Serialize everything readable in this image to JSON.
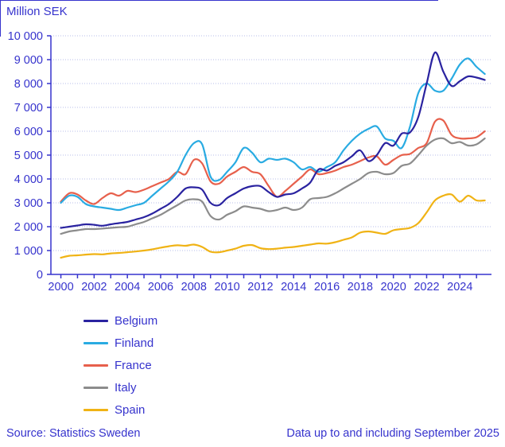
{
  "footer": {
    "source": "Source: Statistics Sweden",
    "note": "Data up to and including September 2025"
  },
  "colors": {
    "text": "#3633cd",
    "axis": "#3633cd",
    "grid": "#b7bce9",
    "border": "#3633cd"
  },
  "chart_data": {
    "type": "line",
    "title": "Million SEK",
    "ylabel": "Million SEK",
    "xlabel": "",
    "grid": "horizontal-dotted",
    "legend_position": "bottom-left",
    "xlim": [
      1999.4,
      2025.9
    ],
    "ylim": [
      0,
      10000
    ],
    "x_start": 2000.0,
    "x_step": 0.5,
    "x_tick_labels": [
      "2000",
      "2002",
      "2004",
      "2006",
      "2008",
      "2010",
      "2012",
      "2014",
      "2016",
      "2018",
      "2020",
      "2022",
      "2024"
    ],
    "x_tick_label_years": [
      2000,
      2002,
      2004,
      2006,
      2008,
      2010,
      2012,
      2014,
      2016,
      2018,
      2020,
      2022,
      2024
    ],
    "x_minor_tick_years": [
      2000,
      2001,
      2002,
      2003,
      2004,
      2005,
      2006,
      2007,
      2008,
      2009,
      2010,
      2011,
      2012,
      2013,
      2014,
      2015,
      2016,
      2017,
      2018,
      2019,
      2020,
      2021,
      2022,
      2023,
      2024,
      2025
    ],
    "y_ticks": [
      0,
      1000,
      2000,
      3000,
      4000,
      5000,
      6000,
      7000,
      8000,
      9000,
      10000
    ],
    "y_tick_labels": [
      "0",
      "1 000",
      "2 000",
      "3 000",
      "4 000",
      "5 000",
      "6 000",
      "7 000",
      "8 000",
      "9 000",
      "10 000"
    ],
    "series": [
      {
        "name": "Belgium",
        "color": "#2a23a0",
        "values": [
          1950,
          2000,
          2050,
          2100,
          2080,
          2040,
          2100,
          2150,
          2200,
          2300,
          2400,
          2550,
          2750,
          2950,
          3250,
          3600,
          3650,
          3550,
          3000,
          2900,
          3200,
          3400,
          3600,
          3700,
          3700,
          3450,
          3250,
          3350,
          3400,
          3600,
          3850,
          4400,
          4350,
          4550,
          4700,
          4950,
          5200,
          4750,
          5000,
          5500,
          5400,
          5900,
          5950,
          6600,
          8000,
          9300,
          8500,
          7900,
          8100,
          8300,
          8250,
          8150
        ]
      },
      {
        "name": "Finland",
        "color": "#29abe2",
        "values": [
          3000,
          3300,
          3250,
          2950,
          2850,
          2800,
          2750,
          2700,
          2800,
          2900,
          3000,
          3300,
          3600,
          3900,
          4300,
          5000,
          5500,
          5450,
          4100,
          3950,
          4300,
          4700,
          5300,
          5100,
          4700,
          4850,
          4800,
          4850,
          4700,
          4400,
          4500,
          4300,
          4500,
          4700,
          5200,
          5600,
          5900,
          6100,
          6200,
          5700,
          5600,
          5300,
          6200,
          7600,
          8000,
          7700,
          7700,
          8200,
          8800,
          9050,
          8700,
          8400
        ]
      },
      {
        "name": "France",
        "color": "#e7604c",
        "values": [
          3050,
          3400,
          3350,
          3100,
          2950,
          3200,
          3400,
          3300,
          3500,
          3450,
          3550,
          3700,
          3850,
          4000,
          4300,
          4200,
          4800,
          4650,
          3900,
          3800,
          4100,
          4300,
          4500,
          4300,
          4200,
          3700,
          3250,
          3500,
          3800,
          4100,
          4400,
          4200,
          4250,
          4350,
          4500,
          4600,
          4750,
          4900,
          4950,
          4600,
          4800,
          5000,
          5050,
          5300,
          5500,
          6400,
          6450,
          5850,
          5700,
          5700,
          5750,
          6000
        ]
      },
      {
        "name": "Italy",
        "color": "#8c8c8c",
        "values": [
          1700,
          1800,
          1850,
          1900,
          1900,
          1920,
          1950,
          1980,
          2000,
          2100,
          2200,
          2350,
          2500,
          2700,
          2900,
          3100,
          3150,
          3050,
          2450,
          2300,
          2500,
          2650,
          2850,
          2800,
          2750,
          2650,
          2700,
          2800,
          2700,
          2800,
          3150,
          3200,
          3250,
          3400,
          3600,
          3800,
          4000,
          4250,
          4300,
          4200,
          4250,
          4550,
          4650,
          5000,
          5400,
          5650,
          5700,
          5500,
          5550,
          5400,
          5450,
          5700
        ]
      },
      {
        "name": "Spain",
        "color": "#f0b315",
        "values": [
          700,
          780,
          800,
          830,
          850,
          840,
          880,
          900,
          930,
          960,
          1000,
          1050,
          1120,
          1180,
          1220,
          1200,
          1250,
          1150,
          950,
          930,
          1000,
          1080,
          1200,
          1230,
          1100,
          1060,
          1080,
          1120,
          1150,
          1200,
          1250,
          1300,
          1290,
          1350,
          1450,
          1550,
          1750,
          1800,
          1750,
          1700,
          1850,
          1900,
          1950,
          2150,
          2600,
          3100,
          3300,
          3350,
          3050,
          3300,
          3100,
          3100
        ]
      }
    ]
  }
}
